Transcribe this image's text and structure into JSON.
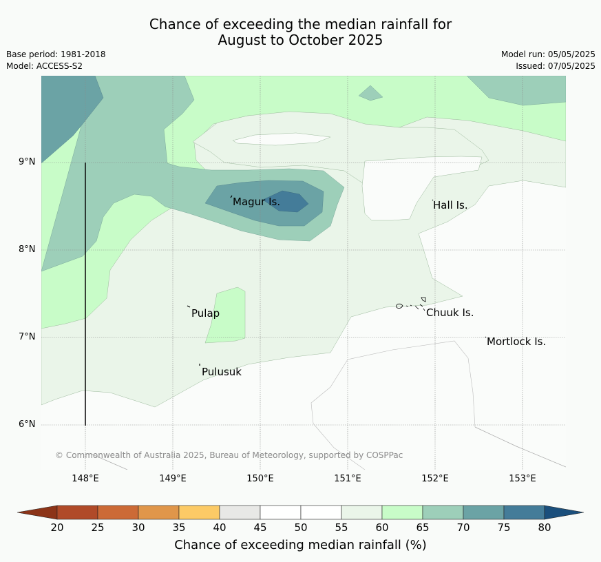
{
  "title": {
    "line1": "Chance of exceeding the median rainfall for",
    "line2": "August to October 2025"
  },
  "meta": {
    "base_period": "Base period: 1981-2018",
    "model": "Model: ACCESS-S2",
    "model_run": "Model run: 05/05/2025",
    "issued": "Issued: 07/05/2025"
  },
  "axes": {
    "lon_ticks": [
      "148°E",
      "149°E",
      "150°E",
      "151°E",
      "152°E",
      "153°E"
    ],
    "lat_ticks": [
      "9°N",
      "8°N",
      "7°N",
      "6°N"
    ]
  },
  "places": {
    "magur": "Magur Is.",
    "hall": "Hall Is.",
    "pulap": "Pulap",
    "chuuk": "Chuuk Is.",
    "mortlock": "Mortlock Is.",
    "pulusuk": "Pulusuk"
  },
  "copyright": "© Commonwealth of Australia 2025, Bureau of Meteorology, supported by COSPPac",
  "colorbar": {
    "label": "Chance of exceeding median rainfall (%)",
    "ticks": [
      "20",
      "25",
      "30",
      "35",
      "40",
      "45",
      "50",
      "55",
      "60",
      "65",
      "70",
      "75",
      "80"
    ],
    "colors": [
      "#b04a28",
      "#cc6a36",
      "#e0964a",
      "#fcca66",
      "#e8e8e6",
      "#ffffff",
      "#ffffff",
      "#eaf5e9",
      "#c8fcc8",
      "#9dcfb9",
      "#6ba3a5",
      "#447c99"
    ],
    "under_color": "#8c3418",
    "over_color": "#1b4f7c"
  }
}
